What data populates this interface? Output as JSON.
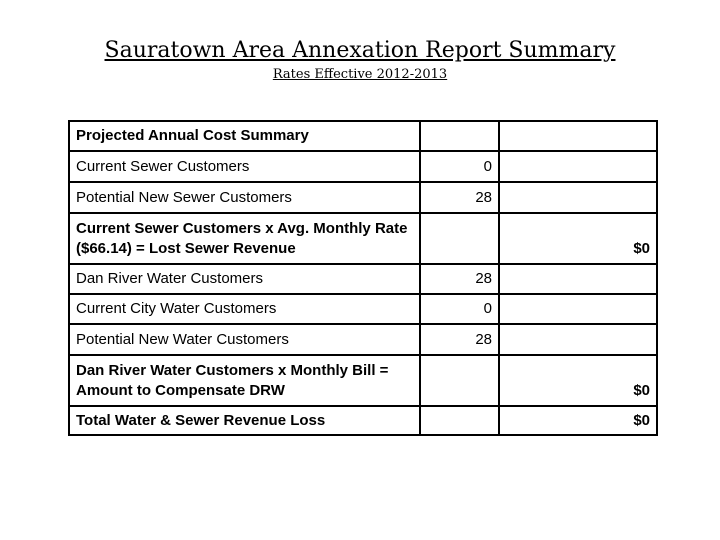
{
  "slide": {
    "title": "Sauratown Area Annexation Report Summary",
    "subtitle": "Rates Effective 2012-2013"
  },
  "table": {
    "rows": [
      {
        "label": "Projected Annual Cost Summary",
        "count": "",
        "amount": ""
      },
      {
        "label": "Current Sewer Customers",
        "count": "0",
        "amount": ""
      },
      {
        "label": "Potential New Sewer Customers",
        "count": "28",
        "amount": ""
      },
      {
        "label": "Current Sewer Customers x Avg. Monthly Rate ($66.14) = Lost Sewer Revenue",
        "count": "",
        "amount": "$0"
      },
      {
        "label": "Dan River Water Customers",
        "count": "28",
        "amount": ""
      },
      {
        "label": "Current City Water Customers",
        "count": "0",
        "amount": ""
      },
      {
        "label": "Potential New Water Customers",
        "count": "28",
        "amount": ""
      },
      {
        "label": "Dan River Water Customers x Monthly Bill = Amount to Compensate DRW",
        "count": "",
        "amount": "$0"
      },
      {
        "label": "Total Water & Sewer Revenue Loss",
        "count": "",
        "amount": "$0"
      }
    ]
  }
}
